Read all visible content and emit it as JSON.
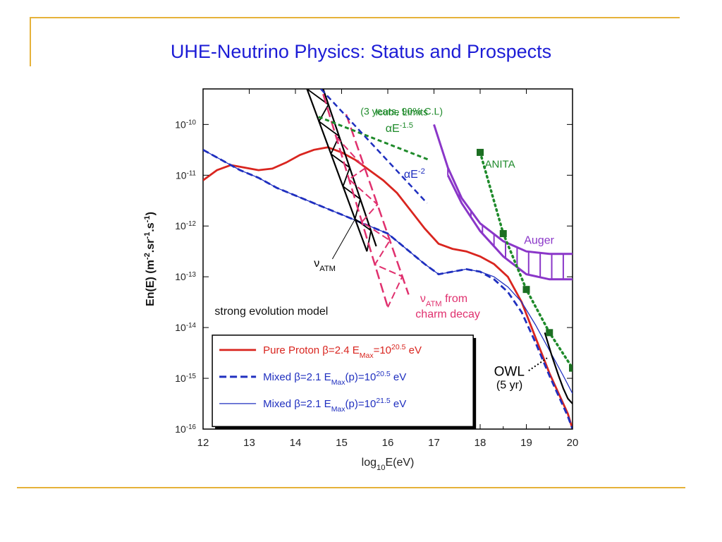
{
  "slide": {
    "title": "UHE-Neutrino Physics: Status and Prospects"
  },
  "chart_data": {
    "type": "line",
    "xlabel": "log10E(eV)",
    "ylabel": "En(E) (m-2.sr-1.s-1)",
    "xlim": [
      12,
      20
    ],
    "ylim_log10": [
      -16,
      -9.3
    ],
    "xticks": [
      "12",
      "13",
      "14",
      "15",
      "16",
      "17",
      "18",
      "19",
      "20"
    ],
    "yticks": [
      {
        "exp": -10,
        "label": "10",
        "sup": "-10"
      },
      {
        "exp": -11,
        "label": "10",
        "sup": "-11"
      },
      {
        "exp": -12,
        "label": "10",
        "sup": "-12"
      },
      {
        "exp": -13,
        "label": "10",
        "sup": "-13"
      },
      {
        "exp": -14,
        "label": "10",
        "sup": "-14"
      },
      {
        "exp": -15,
        "label": "10",
        "sup": "-15"
      },
      {
        "exp": -16,
        "label": "10",
        "sup": "-16"
      }
    ],
    "model_label": "strong evolution model",
    "legend": [
      {
        "name": "Pure Proton β=2.4 E",
        "sub": "Max",
        "tail": "=10",
        "sup": "20.5",
        "end": " eV",
        "color": "#d9251f",
        "style": "solid"
      },
      {
        "name": "Mixed β=2.1 E",
        "sub": "Max",
        "tail": "(p)=10",
        "sup": "20.5",
        "end": " eV",
        "color": "#1f2fbf",
        "style": "dashed"
      },
      {
        "name": "Mixed β=2.1 E",
        "sub": "Max",
        "tail": "(p)=10",
        "sup": "21.5",
        "end": " eV",
        "color": "#1f2fbf",
        "style": "thin"
      }
    ],
    "series": [
      {
        "name": "Pure Proton",
        "color": "#d9251f",
        "x": [
          12.0,
          12.3,
          12.6,
          12.9,
          13.2,
          13.5,
          13.8,
          14.1,
          14.4,
          14.7,
          15.0,
          15.3,
          15.6,
          15.9,
          16.2,
          16.5,
          16.8,
          17.1,
          17.4,
          17.7,
          18.0,
          18.3,
          18.6,
          18.9,
          19.2,
          19.5,
          19.7,
          19.9,
          20.0
        ],
        "y": [
          -11.1,
          -10.9,
          -10.8,
          -10.85,
          -10.9,
          -10.87,
          -10.75,
          -10.6,
          -10.5,
          -10.45,
          -10.55,
          -10.7,
          -10.9,
          -11.1,
          -11.35,
          -11.7,
          -12.05,
          -12.35,
          -12.45,
          -12.5,
          -12.6,
          -12.75,
          -13.0,
          -13.5,
          -14.2,
          -14.9,
          -15.3,
          -15.7,
          -16.0
        ]
      },
      {
        "name": "Mixed dashed",
        "color": "#1f2fbf",
        "x": [
          12.0,
          12.4,
          12.8,
          13.2,
          13.6,
          14.0,
          14.4,
          14.8,
          15.2,
          15.6,
          16.0,
          16.4,
          16.8,
          17.1,
          17.4,
          17.7,
          18.0,
          18.3,
          18.6,
          18.9,
          19.2,
          19.5,
          19.7,
          19.9,
          20.0
        ],
        "y": [
          -10.5,
          -10.7,
          -10.9,
          -11.05,
          -11.25,
          -11.4,
          -11.55,
          -11.7,
          -11.85,
          -12.0,
          -12.15,
          -12.45,
          -12.75,
          -12.95,
          -12.9,
          -12.85,
          -12.9,
          -13.05,
          -13.3,
          -13.7,
          -14.3,
          -14.95,
          -15.35,
          -15.75,
          -16.0
        ]
      },
      {
        "name": "Mixed thin",
        "color": "#1f2fbf",
        "x": [
          12.0,
          12.4,
          12.8,
          13.2,
          13.6,
          14.0,
          14.4,
          14.8,
          15.2,
          15.6,
          16.0,
          16.4,
          16.8,
          17.1,
          17.4,
          17.7,
          18.0,
          18.3,
          18.6,
          18.9,
          19.2,
          19.5,
          19.8,
          20.0
        ],
        "y": [
          -10.5,
          -10.7,
          -10.9,
          -11.05,
          -11.25,
          -11.4,
          -11.55,
          -11.7,
          -11.85,
          -12.0,
          -12.15,
          -12.45,
          -12.75,
          -12.95,
          -12.9,
          -12.85,
          -12.9,
          -13.0,
          -13.2,
          -13.5,
          -13.95,
          -14.45,
          -14.95,
          -15.3
        ]
      },
      {
        "name": "OWL",
        "color": "#000000",
        "x": [
          19.4,
          19.55,
          19.7,
          19.8,
          19.9,
          20.0
        ],
        "y": [
          -14.1,
          -14.55,
          -14.95,
          -15.2,
          -15.4,
          -15.5
        ]
      }
    ],
    "icecube": {
      "label_lines": [
        "Icube Limits",
        "(3 years, 90% C.L)"
      ],
      "alpha15": {
        "label": "αE",
        "sup": "-1.5",
        "x": [
          14.5,
          16.9
        ],
        "y": [
          -9.85,
          -10.7
        ]
      },
      "alpha2": {
        "label": "αE",
        "sup": "-2",
        "x": [
          14.55,
          16.85
        ],
        "y": [
          -9.3,
          -11.55
        ]
      }
    },
    "anita": {
      "label": "ANITA",
      "x": [
        18.0,
        18.5,
        19.0,
        19.5,
        20.0
      ],
      "y": [
        -10.55,
        -12.15,
        -13.25,
        -14.1,
        -14.8
      ]
    },
    "auger": {
      "label": "Auger",
      "upper": {
        "x": [
          17.0,
          17.3,
          17.6,
          18.0,
          18.5,
          19.0,
          19.5,
          20.0
        ],
        "y": [
          -10.0,
          -10.85,
          -11.45,
          -11.95,
          -12.3,
          -12.5,
          -12.55,
          -12.55
        ]
      },
      "lower": {
        "x": [
          17.3,
          17.6,
          18.0,
          18.5,
          19.0,
          19.5,
          20.0
        ],
        "y": [
          -11.0,
          -11.55,
          -12.1,
          -12.6,
          -12.95,
          -13.05,
          -13.05
        ]
      }
    },
    "atm": {
      "label": "ν",
      "sub": "ATM",
      "upper": {
        "x": [
          14.25,
          15.55
        ],
        "y": [
          -9.3,
          -12.5
        ]
      },
      "lower": {
        "x": [
          14.6,
          15.75
        ],
        "y": [
          -9.3,
          -12.4
        ]
      }
    },
    "charm": {
      "label_lines": [
        "from",
        "charm decay"
      ],
      "nu": "ν",
      "sub": "ATM",
      "upper": {
        "x": [
          14.6,
          16.0
        ],
        "y": [
          -9.4,
          -13.6
        ]
      },
      "lower": {
        "x": [
          15.1,
          16.45
        ],
        "y": [
          -9.8,
          -13.35
        ]
      }
    },
    "owl_label": {
      "name": "OWL",
      "years": "(5 yr)"
    }
  }
}
